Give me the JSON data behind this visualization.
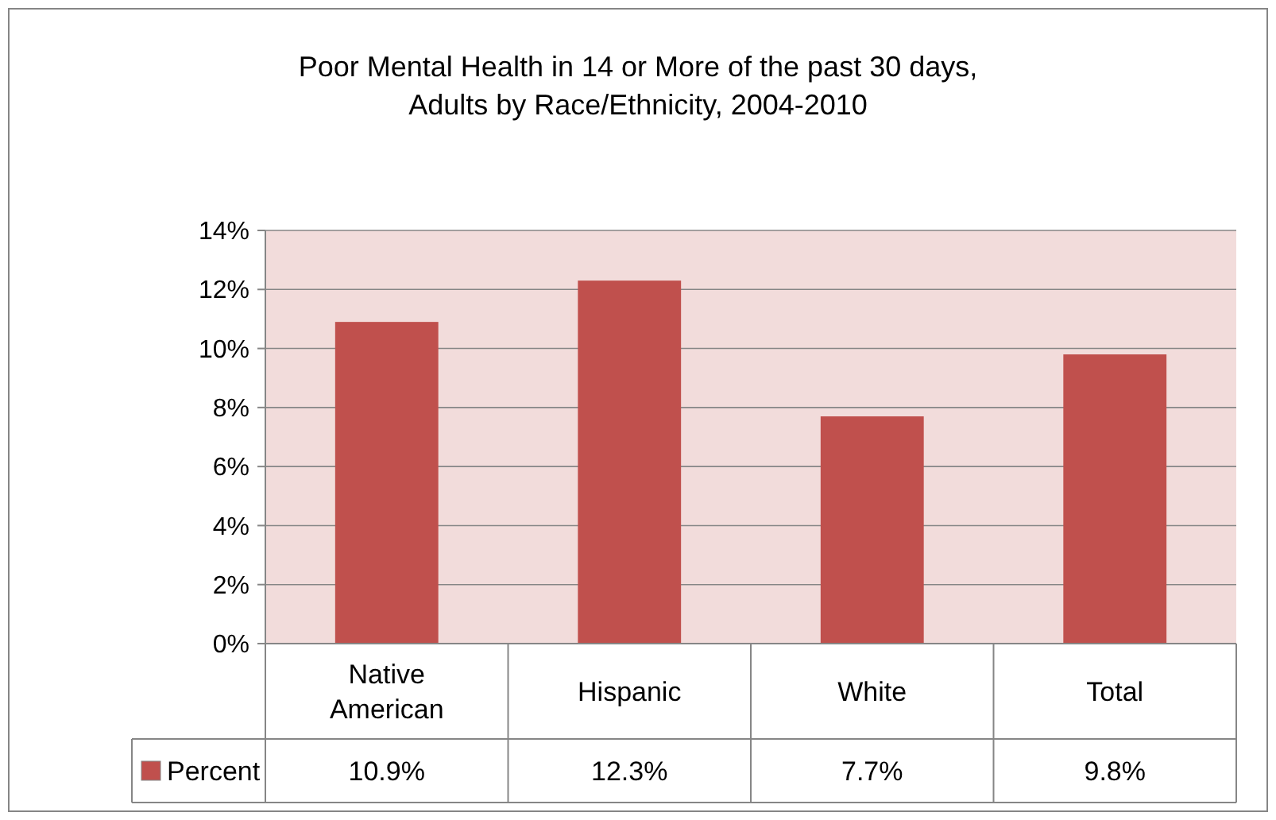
{
  "chart_data": {
    "type": "bar",
    "title": "Poor Mental Health in 14 or More of the past 30 days,\nAdults by Race/Ethnicity, 2004-2010",
    "categories": [
      "Native\nAmerican",
      "Hispanic",
      "White",
      "Total"
    ],
    "series": [
      {
        "name": "Percent",
        "color": "#c0504d",
        "values": [
          10.9,
          12.3,
          7.7,
          9.8
        ],
        "value_labels": [
          "10.9%",
          "12.3%",
          "7.7%",
          "9.8%"
        ]
      }
    ],
    "ylim": [
      0,
      14
    ],
    "yticks": [
      {
        "value": 0,
        "label": "0%"
      },
      {
        "value": 2,
        "label": "2%"
      },
      {
        "value": 4,
        "label": "4%"
      },
      {
        "value": 6,
        "label": "6%"
      },
      {
        "value": 8,
        "label": "8%"
      },
      {
        "value": 10,
        "label": "10%"
      },
      {
        "value": 12,
        "label": "12%"
      },
      {
        "value": 14,
        "label": "14%"
      }
    ],
    "grid": "y",
    "legend": "bottom"
  }
}
